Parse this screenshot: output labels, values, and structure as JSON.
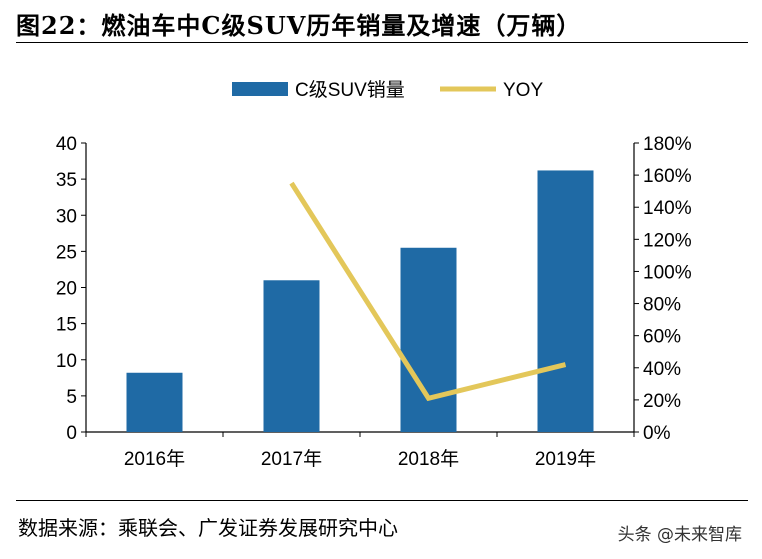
{
  "header": {
    "title": "图22：燃油车中C级SUV历年销量及增速（万辆）"
  },
  "footer": {
    "source": "数据来源：乘联会、广发证券发展研究中心",
    "watermark": "头条 @未来智库"
  },
  "colors": {
    "bar": "#1f6aa5",
    "line": "#e3c75a",
    "axis": "#000000"
  },
  "chart_data": {
    "type": "bar",
    "categories": [
      "2016年",
      "2017年",
      "2018年",
      "2019年"
    ],
    "series": [
      {
        "name": "C级SUV销量",
        "type": "bar",
        "axis": "left",
        "values": [
          8.2,
          21.0,
          25.5,
          36.2
        ]
      },
      {
        "name": "YOY",
        "type": "line",
        "axis": "right",
        "values": [
          null,
          1.55,
          0.21,
          0.42
        ]
      }
    ],
    "y_left": {
      "min": 0,
      "max": 40,
      "step": 5,
      "ticks": [
        "0",
        "5",
        "10",
        "15",
        "20",
        "25",
        "30",
        "35",
        "40"
      ]
    },
    "y_right": {
      "min": 0,
      "max": 1.8,
      "step": 0.2,
      "ticks": [
        "0%",
        "20%",
        "40%",
        "60%",
        "80%",
        "100%",
        "120%",
        "140%",
        "160%",
        "180%"
      ]
    },
    "legend": {
      "position": "top-center",
      "items": [
        "C级SUV销量",
        "YOY"
      ]
    },
    "grid": false
  }
}
